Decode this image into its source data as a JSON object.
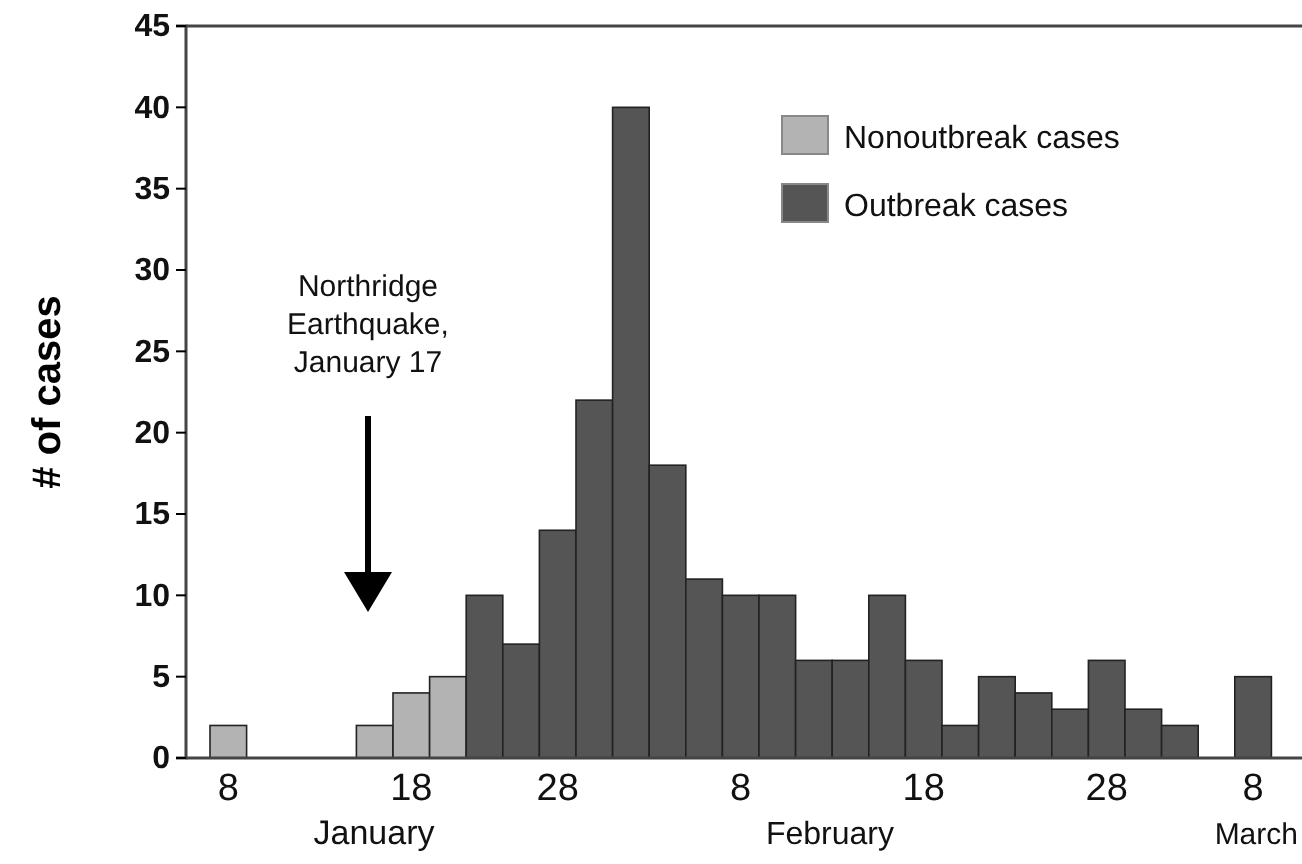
{
  "chart_data": {
    "type": "bar",
    "categories": [
      "8",
      null,
      null,
      null,
      null,
      "18",
      null,
      null,
      null,
      "28",
      null,
      null,
      null,
      null,
      "8",
      null,
      null,
      null,
      null,
      "18",
      null,
      null,
      null,
      null,
      "28",
      null,
      null,
      null,
      "8"
    ],
    "series": [
      {
        "name": "Nonoutbreak cases",
        "color": "#b3b3b3",
        "values": [
          2,
          null,
          null,
          null,
          2,
          4,
          5,
          null,
          null,
          null,
          null,
          null,
          null,
          null,
          null,
          null,
          null,
          null,
          null,
          null,
          null,
          null,
          null,
          null,
          null,
          null,
          null,
          null,
          null
        ]
      },
      {
        "name": "Outbreak cases",
        "color": "#555555",
        "values": [
          null,
          null,
          null,
          null,
          null,
          null,
          null,
          10,
          7,
          14,
          22,
          40,
          18,
          11,
          10,
          10,
          6,
          6,
          10,
          6,
          2,
          5,
          4,
          3,
          6,
          3,
          2,
          null,
          5
        ]
      }
    ],
    "ylim": [
      0,
      45
    ],
    "yticks": [
      0,
      5,
      10,
      15,
      20,
      25,
      30,
      35,
      40,
      45
    ],
    "ylabel": "# of cases",
    "legend": "top right",
    "annotations": [
      "Northridge Earthquake, January 17",
      "January",
      "February",
      "March"
    ]
  }
}
